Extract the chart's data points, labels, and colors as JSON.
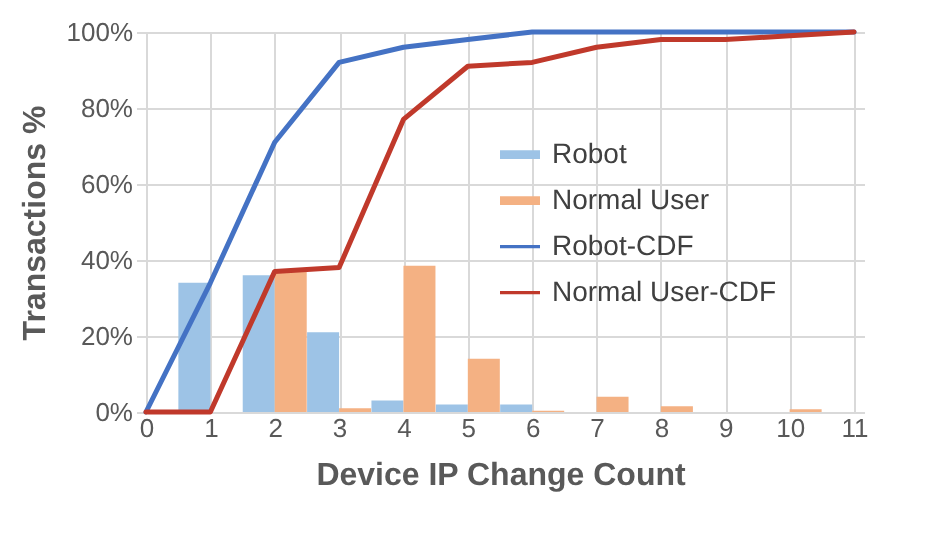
{
  "chart_data": {
    "type": "bar",
    "xlabel": "Device IP Change Count",
    "ylabel": "Transactions %",
    "x": [
      0,
      1,
      2,
      3,
      4,
      5,
      6,
      7,
      8,
      9,
      10,
      11
    ],
    "series": [
      {
        "name": "Robot",
        "color": "#9dc3e6",
        "values": [
          0,
          34,
          36,
          21,
          3,
          2,
          2,
          0,
          0,
          0,
          0,
          0
        ]
      },
      {
        "name": "Normal User",
        "color": "#f4b183",
        "values": [
          0,
          0,
          37,
          1,
          38.5,
          14,
          0.3,
          4,
          1.5,
          0,
          0.7,
          0
        ]
      },
      {
        "name": "Robot-CDF",
        "type": "line",
        "color": "#4472c4",
        "values": [
          0,
          34,
          71,
          92,
          96,
          98,
          100,
          100,
          100,
          100,
          100,
          100
        ]
      },
      {
        "name": "Normal User-CDF",
        "type": "line",
        "color": "#c0392b",
        "values": [
          0,
          0,
          37,
          38,
          77,
          91,
          92,
          96,
          98,
          98,
          99,
          100
        ]
      }
    ],
    "xlim": [
      0,
      11
    ],
    "xticks": [
      0,
      1,
      2,
      3,
      4,
      5,
      6,
      7,
      8,
      9,
      10,
      11
    ],
    "ylim": [
      0,
      100
    ],
    "yticks": [
      {
        "value": 0,
        "label": "0%"
      },
      {
        "value": 20,
        "label": "20%"
      },
      {
        "value": 40,
        "label": "40%"
      },
      {
        "value": 60,
        "label": "60%"
      },
      {
        "value": 80,
        "label": "80%"
      },
      {
        "value": 100,
        "label": "100%"
      }
    ],
    "grid": true,
    "legend": "right",
    "marker": "none",
    "line_style": "solid"
  }
}
